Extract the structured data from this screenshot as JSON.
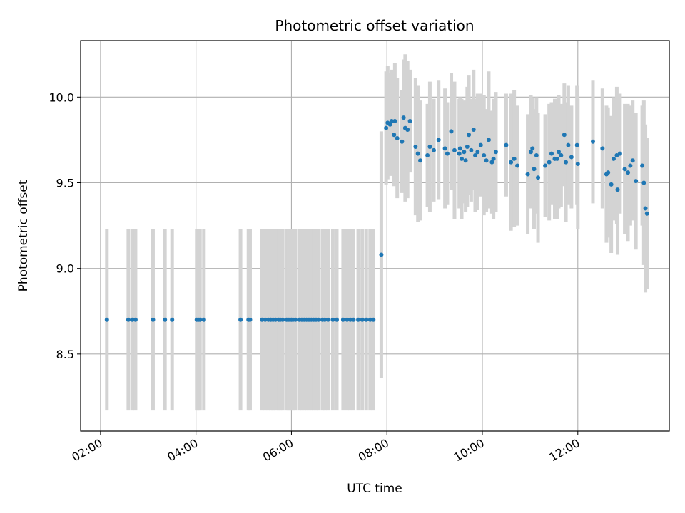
{
  "chart_data": {
    "type": "scatter",
    "title": "Photometric offset variation",
    "xlabel": "UTC time",
    "ylabel": "Photometric offset",
    "grid": true,
    "xlim": [
      "01:35",
      "13:55"
    ],
    "ylim": [
      8.05,
      10.33
    ],
    "x_ticks": [
      "02:00",
      "04:00",
      "06:00",
      "08:00",
      "10:00",
      "12:00"
    ],
    "y_ticks": [
      8.5,
      9.0,
      9.5,
      10.0
    ],
    "y_tick_labels": [
      "8.5",
      "9.0",
      "9.5",
      "10.0"
    ],
    "marker_color": "#1f77b4",
    "errorbar_color": "#d3d3d3",
    "series": [
      {
        "x": [
          "02:08",
          "02:35",
          "02:40",
          "02:44",
          "03:06",
          "03:21",
          "03:30",
          "04:01",
          "04:03",
          "04:05",
          "04:10",
          "04:56",
          "05:06",
          "05:08",
          "05:23",
          "05:27",
          "05:31",
          "05:34",
          "05:37",
          "05:40",
          "05:44",
          "05:46",
          "05:49",
          "05:54",
          "05:56",
          "05:58",
          "06:00",
          "06:02",
          "06:05",
          "06:10",
          "06:13",
          "06:16",
          "06:19",
          "06:22",
          "06:25",
          "06:28",
          "06:31",
          "06:34",
          "06:39",
          "06:42",
          "06:46",
          "06:52",
          "06:57",
          "07:05",
          "07:10",
          "07:14",
          "07:18",
          "07:24",
          "07:29",
          "07:34",
          "07:39",
          "07:43"
        ],
        "y": [
          8.7,
          8.7,
          8.7,
          8.7,
          8.7,
          8.7,
          8.7,
          8.7,
          8.7,
          8.7,
          8.7,
          8.7,
          8.7,
          8.7,
          8.7,
          8.7,
          8.7,
          8.7,
          8.7,
          8.7,
          8.7,
          8.7,
          8.7,
          8.7,
          8.7,
          8.7,
          8.7,
          8.7,
          8.7,
          8.7,
          8.7,
          8.7,
          8.7,
          8.7,
          8.7,
          8.7,
          8.7,
          8.7,
          8.7,
          8.7,
          8.7,
          8.7,
          8.7,
          8.7,
          8.7,
          8.7,
          8.7,
          8.7,
          8.7,
          8.7,
          8.7,
          8.7
        ],
        "yerr": [
          0.53,
          0.53,
          0.53,
          0.53,
          0.53,
          0.53,
          0.53,
          0.53,
          0.53,
          0.53,
          0.53,
          0.53,
          0.53,
          0.53,
          0.53,
          0.53,
          0.53,
          0.53,
          0.53,
          0.53,
          0.53,
          0.53,
          0.53,
          0.53,
          0.53,
          0.53,
          0.53,
          0.53,
          0.53,
          0.53,
          0.53,
          0.53,
          0.53,
          0.53,
          0.53,
          0.53,
          0.53,
          0.53,
          0.53,
          0.53,
          0.53,
          0.53,
          0.53,
          0.53,
          0.53,
          0.53,
          0.53,
          0.53,
          0.53,
          0.53,
          0.53,
          0.53
        ]
      },
      {
        "x": [
          "07:53",
          "07:59",
          "08:01",
          "08:04",
          "08:06",
          "08:09",
          "08:10",
          "08:13",
          "08:19",
          "08:21",
          "08:23",
          "08:26",
          "08:29",
          "08:36",
          "08:39",
          "08:42",
          "08:51",
          "08:54",
          "08:59",
          "09:05",
          "09:13",
          "09:16",
          "09:21",
          "09:25",
          "09:31",
          "09:32",
          "09:34",
          "09:37",
          "09:39",
          "09:41",
          "09:43",
          "09:46",
          "09:49",
          "09:51",
          "09:54",
          "09:58",
          "10:02",
          "10:05",
          "10:08",
          "10:12",
          "10:14",
          "10:17",
          "10:30",
          "10:36",
          "10:40",
          "10:44",
          "10:57",
          "11:01",
          "11:03",
          "11:05",
          "11:08",
          "11:10",
          "11:19",
          "11:24",
          "11:27",
          "11:31",
          "11:34",
          "11:36",
          "11:39",
          "11:43",
          "11:45",
          "11:48",
          "11:52",
          "11:59",
          "12:00",
          "12:19",
          "12:31",
          "12:36",
          "12:38",
          "12:42",
          "12:45",
          "12:49",
          "12:50",
          "12:53",
          "12:59",
          "13:03",
          "13:06",
          "13:09",
          "13:13",
          "13:21",
          "13:23"
        ],
        "y": [
          9.08,
          9.82,
          9.85,
          9.84,
          9.86,
          9.78,
          9.86,
          9.76,
          9.74,
          9.88,
          9.82,
          9.81,
          9.86,
          9.71,
          9.67,
          9.63,
          9.66,
          9.71,
          9.69,
          9.75,
          9.7,
          9.67,
          9.8,
          9.69,
          9.67,
          9.7,
          9.64,
          9.68,
          9.63,
          9.71,
          9.78,
          9.69,
          9.81,
          9.66,
          9.68,
          9.72,
          9.66,
          9.63,
          9.75,
          9.62,
          9.64,
          9.68,
          9.72,
          9.62,
          9.64,
          9.6,
          9.55,
          9.68,
          9.7,
          9.58,
          9.66,
          9.53,
          9.6,
          9.62,
          9.67,
          9.64,
          9.64,
          9.68,
          9.66,
          9.78,
          9.62,
          9.72,
          9.65,
          9.72,
          9.61,
          9.74,
          9.7,
          9.55,
          9.56,
          9.49,
          9.64,
          9.66,
          9.46,
          9.67,
          9.58,
          9.56,
          9.6,
          9.63,
          9.51,
          9.6,
          9.5
        ],
        "yerr": [
          0.72,
          0.33,
          0.33,
          0.3,
          0.3,
          0.3,
          0.34,
          0.35,
          0.3,
          0.34,
          0.43,
          0.4,
          0.3,
          0.4,
          0.4,
          0.35,
          0.3,
          0.38,
          0.3,
          0.35,
          0.35,
          0.3,
          0.34,
          0.4,
          0.32,
          0.3,
          0.35,
          0.3,
          0.3,
          0.35,
          0.35,
          0.3,
          0.35,
          0.33,
          0.34,
          0.3,
          0.35,
          0.3,
          0.4,
          0.3,
          0.35,
          0.35,
          0.3,
          0.4,
          0.4,
          0.35,
          0.35,
          0.33,
          0.3,
          0.35,
          0.34,
          0.38,
          0.3,
          0.34,
          0.3,
          0.35,
          0.35,
          0.33,
          0.3,
          0.3,
          0.35,
          0.35,
          0.3,
          0.35,
          0.38,
          0.36,
          0.35,
          0.4,
          0.38,
          0.4,
          0.36,
          0.4,
          0.38,
          0.35,
          0.38,
          0.4,
          0.35,
          0.35,
          0.4,
          0.35,
          0.48
        ]
      },
      {
        "x": [
          "13:25",
          "13:27"
        ],
        "y": [
          9.35,
          9.32
        ],
        "yerr": [
          0.49,
          0.44
        ]
      }
    ]
  }
}
